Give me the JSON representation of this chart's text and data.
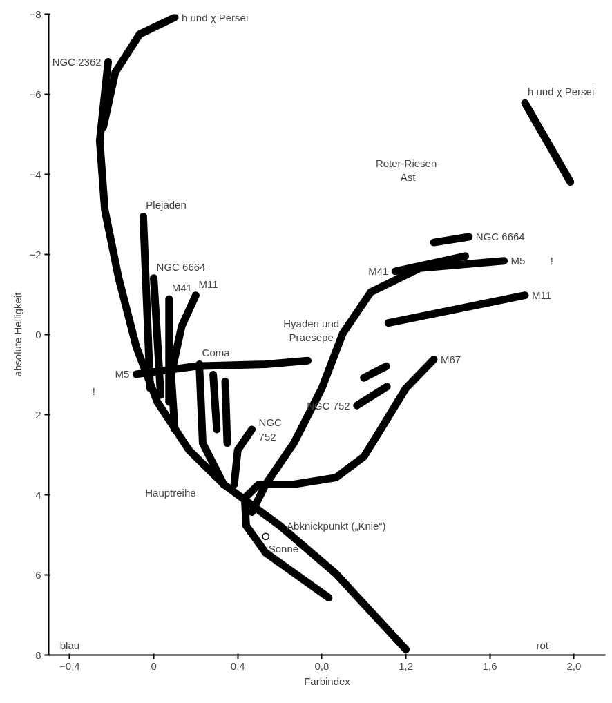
{
  "chart_data": {
    "type": "line",
    "xlabel": "Farbindex",
    "ylabel": "absolute Helligkeit",
    "xlim": [
      -0.5,
      2.15
    ],
    "ylim": [
      8,
      -8
    ],
    "xticks": [
      {
        "value": -0.4,
        "label": "−0,4"
      },
      0,
      {
        "value": 0.4,
        "label": "0,4"
      },
      {
        "value": 0.8,
        "label": "0,8"
      },
      {
        "value": 1.2,
        "label": "1,2"
      },
      {
        "value": 1.6,
        "label": "1,6"
      },
      {
        "value": 2.0,
        "label": "2,0"
      }
    ],
    "yticks": [
      {
        "value": -8,
        "label": "−8"
      },
      {
        "value": -6,
        "label": "−6"
      },
      {
        "value": -4,
        "label": "−4"
      },
      {
        "value": -2,
        "label": "−2"
      },
      0,
      2,
      4,
      6,
      8
    ],
    "grid": false,
    "line_style": "solid",
    "series": [
      {
        "color": "#000000",
        "x": [
          -0.217,
          -0.257,
          -0.233,
          -0.167,
          -0.083,
          0.017,
          0.167,
          0.333,
          0.6,
          0.867,
          1.2
        ],
        "values": [
          -6.81,
          -4.84,
          -3.12,
          -1.41,
          0.31,
          1.68,
          2.88,
          3.74,
          4.77,
          5.97,
          7.86
        ]
      },
      {
        "name": "h und χ Persei",
        "color": "#000000",
        "x": [
          0.1,
          -0.067,
          -0.183,
          -0.24
        ],
        "values": [
          -7.92,
          -7.5,
          -6.55,
          -5.18
        ]
      },
      {
        "name": "M67",
        "color": "#000000",
        "x": [
          1.333,
          1.2,
          1.1,
          1.0,
          0.867,
          0.667,
          0.5,
          0.433,
          0.44,
          0.533,
          0.833
        ],
        "values": [
          0.62,
          1.34,
          2.2,
          3.05,
          3.57,
          3.74,
          3.74,
          4.08,
          4.77,
          5.45,
          6.57
        ]
      },
      {
        "name": "M5",
        "color": "#000000",
        "x": [
          1.667,
          1.267,
          1.033,
          0.9,
          0.8,
          0.667,
          0.533,
          0.467
        ],
        "values": [
          -1.84,
          -1.66,
          -1.06,
          -0.03,
          1.34,
          2.71,
          3.74,
          4.43
        ]
      },
      {
        "name": "M5",
        "color": "#000000",
        "x": [
          -0.083,
          0.2,
          0.533,
          0.733
        ],
        "values": [
          0.99,
          0.79,
          0.74,
          0.65
        ]
      },
      {
        "name": "Plejaden",
        "color": "#000000",
        "x": [
          -0.05,
          -0.017
        ],
        "values": [
          -2.95,
          1.34
        ]
      },
      {
        "name": "NGC 6664",
        "color": "#000000",
        "x": [
          0.0,
          0.033
        ],
        "values": [
          -1.41,
          1.51
        ]
      },
      {
        "name": "M41",
        "color": "#000000",
        "x": [
          0.073,
          0.073
        ],
        "values": [
          -0.89,
          1.68
        ]
      },
      {
        "name": "M11",
        "color": "#000000",
        "x": [
          0.2,
          0.133,
          0.083,
          0.1
        ],
        "values": [
          -0.98,
          -0.21,
          0.99,
          2.37
        ]
      },
      {
        "name": "Coma",
        "color": "#000000",
        "x": [
          0.217,
          0.233,
          0.333
        ],
        "values": [
          0.74,
          2.71,
          3.74
        ]
      },
      {
        "color": "#000000",
        "x": [
          0.283,
          0.3
        ],
        "values": [
          1.0,
          2.37
        ]
      },
      {
        "color": "#000000",
        "x": [
          0.34,
          0.35
        ],
        "values": [
          1.17,
          2.71
        ]
      },
      {
        "name": "NGC\n752",
        "color": "#000000",
        "x": [
          0.467,
          0.4,
          0.383
        ],
        "values": [
          2.37,
          2.88,
          3.74
        ]
      },
      {
        "name": "h und χ Persei",
        "color": "#000000",
        "x": [
          1.767,
          1.983
        ],
        "values": [
          -5.78,
          -3.81
        ]
      },
      {
        "name": "NGC 6664",
        "color": "#000000",
        "x": [
          1.5,
          1.333
        ],
        "values": [
          -2.44,
          -2.3
        ]
      },
      {
        "name": "M41",
        "color": "#000000",
        "x": [
          1.15,
          1.483
        ],
        "values": [
          -1.58,
          -1.96
        ]
      },
      {
        "name": "M11",
        "color": "#000000",
        "x": [
          1.767,
          1.117
        ],
        "values": [
          -0.98,
          -0.29
        ]
      },
      {
        "color": "#000000",
        "x": [
          1.0,
          1.107
        ],
        "values": [
          1.08,
          0.79
        ]
      },
      {
        "name": "NGC 752",
        "color": "#000000",
        "x": [
          0.967,
          1.11
        ],
        "values": [
          1.77,
          1.3
        ]
      },
      {
        "name": "Sonne",
        "type": "scatter",
        "marker": "circle",
        "color": "#ffffff",
        "x": [
          0.533
        ],
        "values": [
          5.04
        ]
      }
    ],
    "annotations": [
      {
        "text": "NGC 2362",
        "x": -0.217,
        "y": -6.81
      },
      {
        "text": "Abknickpunkt („Knie“)",
        "x": 0.6,
        "y": 4.77
      },
      "Roter-Riesen-\nAst",
      "Hyaden und\nPraesepe",
      "Hauptreihe",
      "!",
      "!",
      "blau",
      "rot"
    ]
  }
}
